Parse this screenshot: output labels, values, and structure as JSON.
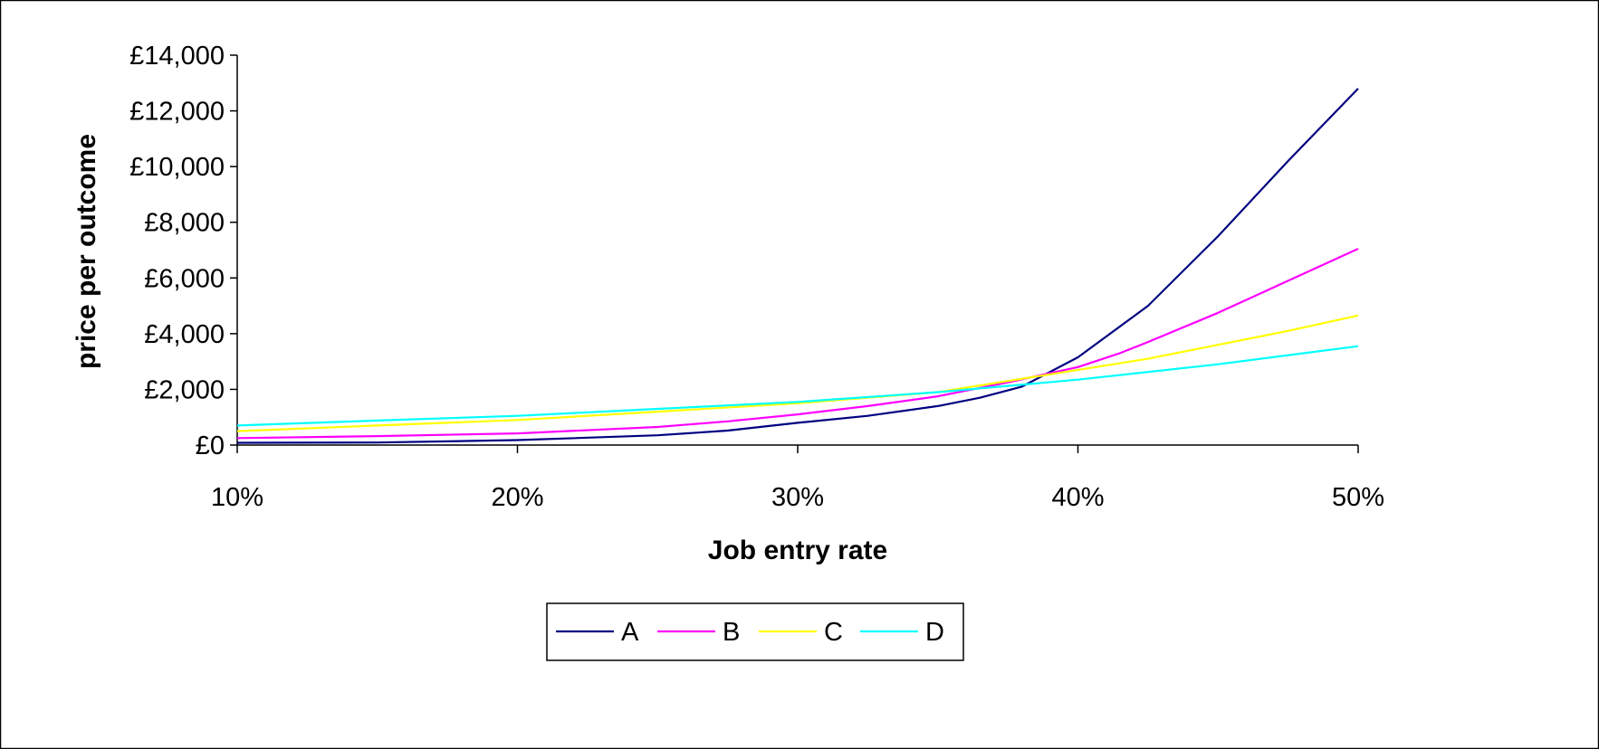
{
  "chart_data": {
    "type": "line",
    "title": "",
    "xlabel": "Job entry rate",
    "ylabel": "price per outcome",
    "x_unit": "%",
    "x_ticks": [
      10,
      20,
      30,
      40,
      50
    ],
    "x_tick_labels": [
      "10%",
      "20%",
      "30%",
      "40%",
      "50%"
    ],
    "xlim": [
      10,
      50
    ],
    "y_ticks": [
      0,
      2000,
      4000,
      6000,
      8000,
      10000,
      12000,
      14000
    ],
    "y_tick_labels": [
      "£0",
      "£2,000",
      "£4,000",
      "£6,000",
      "£8,000",
      "£10,000",
      "£12,000",
      "£14,000"
    ],
    "ylim": [
      0,
      14000
    ],
    "grid": false,
    "legend_position": "bottom",
    "series": [
      {
        "name": "A",
        "color": "#000080",
        "x": [
          10,
          15,
          20,
          25,
          27.5,
          30,
          32.5,
          35,
          36.5,
          38,
          40,
          42.5,
          45,
          47.5,
          50
        ],
        "y": [
          80,
          90,
          180,
          350,
          520,
          800,
          1050,
          1400,
          1700,
          2100,
          3150,
          5000,
          7500,
          10200,
          12800
        ]
      },
      {
        "name": "B",
        "color": "#FF00FF",
        "x": [
          10,
          15,
          20,
          25,
          27.5,
          30,
          32.5,
          35,
          37.5,
          40,
          41.5,
          42.5,
          45,
          47.5,
          50
        ],
        "y": [
          250,
          320,
          420,
          650,
          850,
          1100,
          1400,
          1750,
          2250,
          2800,
          3300,
          3700,
          4750,
          5900,
          7050
        ]
      },
      {
        "name": "C",
        "color": "#FFFF00",
        "x": [
          10,
          15,
          20,
          25,
          30,
          35,
          40,
          42.5,
          45,
          47.5,
          50
        ],
        "y": [
          500,
          700,
          900,
          1200,
          1500,
          1900,
          2700,
          3100,
          3600,
          4100,
          4650
        ]
      },
      {
        "name": "D",
        "color": "#00FFFF",
        "x": [
          10,
          15,
          20,
          25,
          30,
          35,
          40,
          45,
          50
        ],
        "y": [
          700,
          880,
          1050,
          1300,
          1550,
          1900,
          2350,
          2900,
          3550
        ]
      }
    ]
  }
}
